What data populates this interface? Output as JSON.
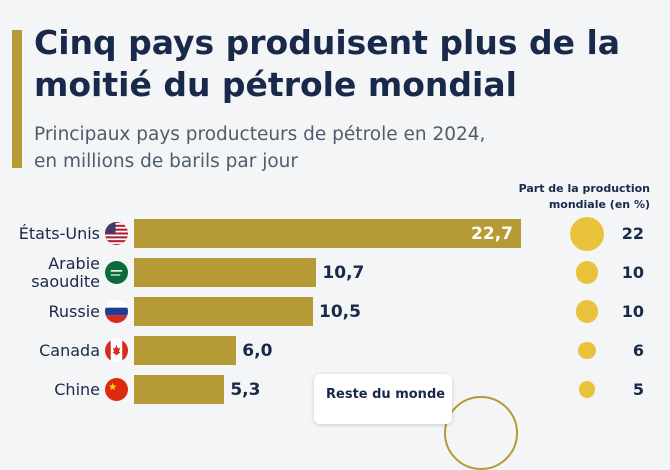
{
  "chart_data": {
    "type": "bar",
    "orientation": "horizontal",
    "title": "Cinq pays produisent plus de la moitié du pétrole mondial",
    "subtitle_lines": [
      "Principaux pays producteurs de pétrole en 2024,",
      "en millions de barils par jour"
    ],
    "share_header_lines": [
      "Part de la production",
      "mondiale (en %)"
    ],
    "categories": [
      {
        "name_lines": [
          "États-Unis"
        ],
        "flag": "usa-flag-icon"
      },
      {
        "name_lines": [
          "Arabie",
          "saoudite"
        ],
        "flag": "saudi-arabia-flag-icon"
      },
      {
        "name_lines": [
          "Russie"
        ],
        "flag": "russia-flag-icon"
      },
      {
        "name_lines": [
          "Canada"
        ],
        "flag": "canada-flag-icon"
      },
      {
        "name_lines": [
          "Chine"
        ],
        "flag": "china-flag-icon"
      }
    ],
    "values": [
      22.7,
      10.7,
      10.5,
      6.0,
      5.3
    ],
    "value_labels": [
      "22,7",
      "10,7",
      "10,5",
      "6,0",
      "5,3"
    ],
    "shares": [
      22,
      10,
      10,
      6,
      5
    ],
    "share_labels": [
      "22",
      "10",
      "10",
      "6",
      "5"
    ],
    "xlim": [
      0,
      22.7
    ],
    "rest_of_world_label": "Reste du monde",
    "colors": {
      "bar": "#b59a35",
      "bubble": "#e9c33c",
      "text": "#18294a"
    }
  }
}
